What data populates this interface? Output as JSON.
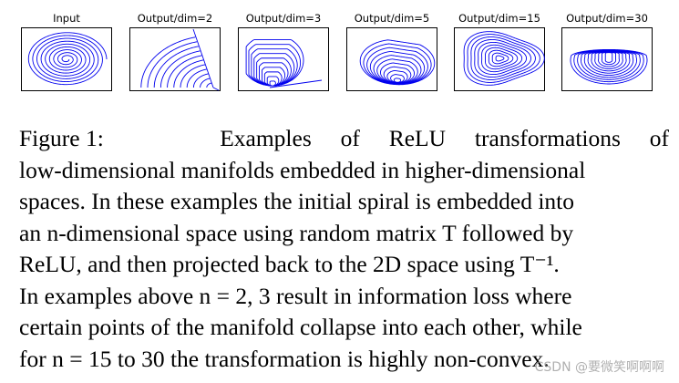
{
  "figure": {
    "panel_titles": [
      "Input",
      "Output/dim=2",
      "Output/dim=3",
      "Output/dim=5",
      "Output/dim=15",
      "Output/dim=30"
    ],
    "line_color": "#0000ee"
  },
  "caption": {
    "label": "Figure 1:",
    "lines": [
      "Examples of ReLU transformations of",
      "low-dimensional manifolds embedded in higher-dimensional",
      "spaces. In these examples the initial spiral is embedded into",
      "an n-dimensional space using random matrix T followed by",
      "ReLU, and then projected back to the 2D space using T⁻¹.",
      "In examples above n = 2, 3 result in information loss where",
      "certain points of the manifold collapse into each other, while",
      "for n = 15 to 30 the transformation is highly non-convex."
    ]
  },
  "watermark": "CSDN @要微笑啊啊啊"
}
